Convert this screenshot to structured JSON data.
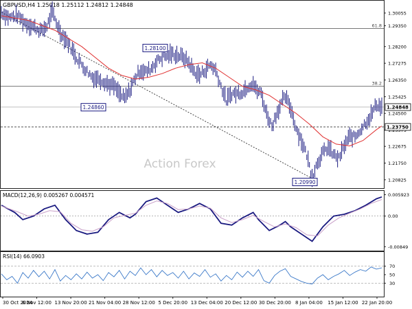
{
  "chart_data": [
    {
      "type": "candlestick",
      "symbol": "GBPUSD,H4",
      "quote": {
        "open": "1.25018",
        "high": "1.25112",
        "low": "1.24812",
        "close": "1.24848"
      },
      "header_text": "GBPUSD,H4  1.25018 1.25112 1.24812 1.24848",
      "watermark": "Action Forex",
      "ylim": [
        1.204,
        1.307
      ],
      "y_ticks": [
        "1.30055",
        "1.29350",
        "1.28200",
        "1.27275",
        "1.26350",
        "1.25425",
        "1.24500",
        "1.23575",
        "1.22675",
        "1.21750",
        "1.20825"
      ],
      "last_price": "1.24848",
      "level_line": "1.23750",
      "fib_levels": [
        {
          "label": "61.8",
          "value": 1.292
        },
        {
          "label": "38.2",
          "value": 1.26
        }
      ],
      "annotations": [
        {
          "text": "1.28100",
          "value": 1.281
        },
        {
          "text": "1.24860",
          "value": 1.2486
        },
        {
          "text": "1.20990",
          "value": 1.2099
        }
      ],
      "price_path": [
        [
          0,
          1.301
        ],
        [
          3,
          1.298
        ],
        [
          6,
          1.299
        ],
        [
          9,
          1.295
        ],
        [
          12,
          1.293
        ],
        [
          15,
          1.2905
        ],
        [
          17,
          1.2935
        ],
        [
          19,
          1.301
        ],
        [
          22,
          1.29
        ],
        [
          25,
          1.284
        ],
        [
          28,
          1.276
        ],
        [
          31,
          1.27
        ],
        [
          34,
          1.265
        ],
        [
          37,
          1.264
        ],
        [
          40,
          1.261
        ],
        [
          42,
          1.26
        ],
        [
          44,
          1.256
        ],
        [
          46,
          1.253
        ],
        [
          48,
          1.258
        ],
        [
          50,
          1.265
        ],
        [
          52,
          1.269
        ],
        [
          54,
          1.268
        ],
        [
          56,
          1.27
        ],
        [
          58,
          1.274
        ],
        [
          60,
          1.276
        ],
        [
          62,
          1.277
        ],
        [
          64,
          1.278
        ],
        [
          66,
          1.277
        ],
        [
          68,
          1.276
        ],
        [
          70,
          1.273
        ],
        [
          72,
          1.268
        ],
        [
          74,
          1.266
        ],
        [
          76,
          1.269
        ],
        [
          78,
          1.272
        ],
        [
          80,
          1.269
        ],
        [
          82,
          1.26
        ],
        [
          84,
          1.252
        ],
        [
          86,
          1.256
        ],
        [
          88,
          1.256
        ],
        [
          90,
          1.257
        ],
        [
          92,
          1.26
        ],
        [
          94,
          1.262
        ],
        [
          95,
          1.258
        ],
        [
          97,
          1.256
        ],
        [
          99,
          1.245
        ],
        [
          101,
          1.238
        ],
        [
          103,
          1.246
        ],
        [
          105,
          1.252
        ],
        [
          106,
          1.254
        ],
        [
          108,
          1.248
        ],
        [
          110,
          1.237
        ],
        [
          112,
          1.23
        ],
        [
          114,
          1.222
        ],
        [
          116,
          1.21
        ],
        [
          118,
          1.218
        ],
        [
          120,
          1.223
        ],
        [
          122,
          1.226
        ],
        [
          124,
          1.222
        ],
        [
          126,
          1.22
        ],
        [
          128,
          1.227
        ],
        [
          130,
          1.232
        ],
        [
          132,
          1.232
        ],
        [
          134,
          1.236
        ],
        [
          136,
          1.24
        ],
        [
          138,
          1.244
        ],
        [
          140,
          1.25
        ],
        [
          142,
          1.2485
        ]
      ],
      "ma_path": [
        [
          0,
          1.299
        ],
        [
          10,
          1.2965
        ],
        [
          20,
          1.291
        ],
        [
          30,
          1.282
        ],
        [
          40,
          1.27
        ],
        [
          45,
          1.266
        ],
        [
          50,
          1.264
        ],
        [
          55,
          1.265
        ],
        [
          60,
          1.267
        ],
        [
          65,
          1.27
        ],
        [
          70,
          1.272
        ],
        [
          75,
          1.273
        ],
        [
          80,
          1.27
        ],
        [
          85,
          1.265
        ],
        [
          90,
          1.26
        ],
        [
          95,
          1.258
        ],
        [
          100,
          1.255
        ],
        [
          105,
          1.25
        ],
        [
          110,
          1.245
        ],
        [
          115,
          1.239
        ],
        [
          120,
          1.232
        ],
        [
          125,
          1.228
        ],
        [
          130,
          1.227
        ],
        [
          135,
          1.23
        ],
        [
          140,
          1.236
        ],
        [
          142,
          1.238
        ]
      ],
      "trendline": [
        [
          0,
          1.301
        ],
        [
          116,
          1.209
        ]
      ],
      "colors": {
        "price": "#1a1a80",
        "ma": "#e03030",
        "trendline": "#333333",
        "levels": "#777777",
        "label_box": "#1a1a80"
      }
    },
    {
      "type": "line",
      "title": "MACD(12,26,9) 0.005267 0.004571",
      "ylim": [
        -0.0092,
        0.0066
      ],
      "y_ticks": [
        "0.005923",
        "0.00",
        "-0.00849"
      ],
      "zero_line": 0.0,
      "series": [
        {
          "role": "macd",
          "points": [
            [
              0,
              0.003
            ],
            [
              5,
              0.001
            ],
            [
              8,
              -0.001
            ],
            [
              12,
              0.0
            ],
            [
              16,
              0.002
            ],
            [
              20,
              0.003
            ],
            [
              24,
              -0.001
            ],
            [
              28,
              -0.004
            ],
            [
              32,
              -0.005
            ],
            [
              36,
              -0.0045
            ],
            [
              40,
              -0.001
            ],
            [
              44,
              0.001
            ],
            [
              48,
              -0.0005
            ],
            [
              50,
              0.0005
            ],
            [
              54,
              0.004
            ],
            [
              58,
              0.005
            ],
            [
              62,
              0.003
            ],
            [
              66,
              0.001
            ],
            [
              70,
              0.002
            ],
            [
              74,
              0.0035
            ],
            [
              78,
              0.002
            ],
            [
              82,
              -0.002
            ],
            [
              86,
              -0.0025
            ],
            [
              90,
              -0.0005
            ],
            [
              94,
              0.001
            ],
            [
              96,
              -0.001
            ],
            [
              100,
              -0.004
            ],
            [
              104,
              -0.0025
            ],
            [
              106,
              -0.0015
            ],
            [
              108,
              -0.003
            ],
            [
              112,
              -0.005
            ],
            [
              116,
              -0.007
            ],
            [
              120,
              -0.003
            ],
            [
              124,
              0.0
            ],
            [
              128,
              0.0005
            ],
            [
              132,
              0.0015
            ],
            [
              136,
              0.003
            ],
            [
              140,
              0.0048
            ],
            [
              142,
              0.0053
            ]
          ]
        },
        {
          "role": "signal",
          "points": [
            [
              0,
              0.0028
            ],
            [
              6,
              0.0012
            ],
            [
              10,
              0.0
            ],
            [
              14,
              0.0005
            ],
            [
              18,
              0.0015
            ],
            [
              22,
              0.0012
            ],
            [
              26,
              -0.002
            ],
            [
              30,
              -0.0038
            ],
            [
              34,
              -0.0042
            ],
            [
              38,
              -0.003
            ],
            [
              42,
              -0.0005
            ],
            [
              46,
              0.0002
            ],
            [
              50,
              0.0008
            ],
            [
              54,
              0.003
            ],
            [
              58,
              0.0042
            ],
            [
              62,
              0.0035
            ],
            [
              66,
              0.0018
            ],
            [
              70,
              0.002
            ],
            [
              74,
              0.0028
            ],
            [
              78,
              0.0022
            ],
            [
              82,
              -0.0005
            ],
            [
              86,
              -0.0018
            ],
            [
              90,
              -0.001
            ],
            [
              94,
              0.0002
            ],
            [
              98,
              -0.0015
            ],
            [
              102,
              -0.003
            ],
            [
              106,
              -0.0022
            ],
            [
              110,
              -0.0032
            ],
            [
              114,
              -0.0052
            ],
            [
              118,
              -0.0055
            ],
            [
              122,
              -0.0025
            ],
            [
              126,
              -0.0005
            ],
            [
              130,
              0.0008
            ],
            [
              134,
              0.002
            ],
            [
              138,
              0.0035
            ],
            [
              142,
              0.0046
            ]
          ]
        }
      ],
      "colors": {
        "macd": "#1a1a80",
        "signal": "#c8a0c8",
        "zero": "#888888"
      }
    },
    {
      "type": "line",
      "title": "RSI(14) 66.0903",
      "ylim": [
        0,
        100
      ],
      "y_ticks": [
        "70",
        "50",
        "30"
      ],
      "reference_lines": [
        70,
        30
      ],
      "series": [
        {
          "role": "rsi",
          "points": [
            [
              0,
              52
            ],
            [
              2,
              38
            ],
            [
              4,
              46
            ],
            [
              6,
              30
            ],
            [
              8,
              55
            ],
            [
              10,
              42
            ],
            [
              12,
              60
            ],
            [
              14,
              45
            ],
            [
              16,
              58
            ],
            [
              18,
              40
            ],
            [
              20,
              62
            ],
            [
              22,
              35
            ],
            [
              24,
              48
            ],
            [
              26,
              38
            ],
            [
              28,
              52
            ],
            [
              30,
              40
            ],
            [
              32,
              56
            ],
            [
              34,
              42
            ],
            [
              36,
              50
            ],
            [
              38,
              36
            ],
            [
              40,
              55
            ],
            [
              42,
              45
            ],
            [
              44,
              60
            ],
            [
              46,
              40
            ],
            [
              48,
              58
            ],
            [
              50,
              48
            ],
            [
              52,
              66
            ],
            [
              54,
              50
            ],
            [
              56,
              62
            ],
            [
              58,
              45
            ],
            [
              60,
              60
            ],
            [
              62,
              48
            ],
            [
              64,
              55
            ],
            [
              66,
              42
            ],
            [
              68,
              58
            ],
            [
              70,
              40
            ],
            [
              72,
              54
            ],
            [
              74,
              46
            ],
            [
              76,
              62
            ],
            [
              78,
              44
            ],
            [
              80,
              52
            ],
            [
              82,
              35
            ],
            [
              84,
              48
            ],
            [
              86,
              38
            ],
            [
              88,
              56
            ],
            [
              90,
              44
            ],
            [
              92,
              58
            ],
            [
              94,
              46
            ],
            [
              96,
              62
            ],
            [
              98,
              36
            ],
            [
              100,
              30
            ],
            [
              102,
              48
            ],
            [
              104,
              58
            ],
            [
              106,
              64
            ],
            [
              108,
              46
            ],
            [
              110,
              40
            ],
            [
              112,
              34
            ],
            [
              114,
              30
            ],
            [
              116,
              28
            ],
            [
              118,
              42
            ],
            [
              120,
              50
            ],
            [
              122,
              38
            ],
            [
              124,
              46
            ],
            [
              126,
              52
            ],
            [
              128,
              60
            ],
            [
              130,
              48
            ],
            [
              132,
              56
            ],
            [
              134,
              62
            ],
            [
              136,
              58
            ],
            [
              138,
              68
            ],
            [
              140,
              63
            ],
            [
              142,
              66
            ]
          ]
        }
      ],
      "colors": {
        "rsi": "#3a78c8",
        "levels": "#aaaaaa"
      }
    }
  ],
  "x_labels": [
    "30 Oct 2024",
    "6 Nov 12:00",
    "13 Nov 20:00",
    "21 Nov 04:00",
    "28 Nov 12:00",
    "5 Dec 20:00",
    "13 Dec 04:00",
    "20 Dec 12:00",
    "30 Dec 20:00",
    "8 Jan 04:00",
    "15 Jan 12:00",
    "22 Jan 20:00"
  ]
}
